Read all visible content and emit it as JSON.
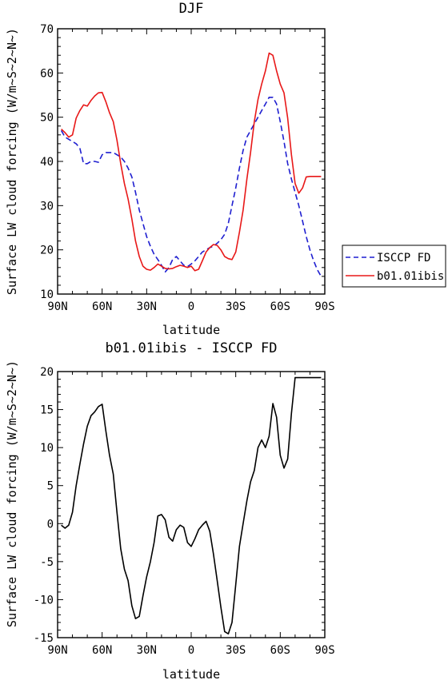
{
  "chart_data": [
    {
      "type": "line",
      "title": "DJF",
      "xlabel": "latitude",
      "ylabel": "Surface LW cloud forcing (W/m~S~2~N~)",
      "xlim": [
        -90,
        90
      ],
      "ylim": [
        10,
        70
      ],
      "x_ticks": [
        -90,
        -60,
        -30,
        0,
        30,
        60,
        90
      ],
      "x_tick_labels": [
        "90N",
        "60N",
        "30N",
        "0",
        "30S",
        "60S",
        "90S"
      ],
      "y_ticks": [
        10,
        20,
        30,
        40,
        50,
        60,
        70
      ],
      "y_tick_labels": [
        "10",
        "20",
        "30",
        "40",
        "50",
        "60",
        "70"
      ],
      "legend_position": "outside-right",
      "series": [
        {
          "name": "ISCCP FD",
          "color": "#1f1fd0",
          "dash": "dashed",
          "x": [
            -87.5,
            -85,
            -82.5,
            -80,
            -77.5,
            -75,
            -72.5,
            -70,
            -67.5,
            -65,
            -62.5,
            -60,
            -57.5,
            -55,
            -52.5,
            -50,
            -47.5,
            -45,
            -42.5,
            -40,
            -37.5,
            -35,
            -32.5,
            -30,
            -27.5,
            -25,
            -22.5,
            -20,
            -17.5,
            -15,
            -12.5,
            -10,
            -7.5,
            -5,
            -2.5,
            0,
            2.5,
            5,
            7.5,
            10,
            12.5,
            15,
            17.5,
            20,
            22.5,
            25,
            27.5,
            30,
            32.5,
            35,
            37.5,
            40,
            42.5,
            45,
            47.5,
            50,
            52.5,
            55,
            57.5,
            60,
            62.5,
            65,
            67.5,
            70,
            72.5,
            75,
            77.5,
            80,
            82.5,
            85,
            87.5
          ],
          "values": [
            47,
            45.5,
            45,
            44.5,
            44,
            43,
            39.5,
            39.5,
            40,
            40,
            39.8,
            41.5,
            42,
            42,
            42,
            41.5,
            41,
            40,
            38.5,
            36.5,
            33,
            29,
            26,
            23,
            20.8,
            19,
            17.8,
            16.5,
            15,
            16,
            17.8,
            18.5,
            17.5,
            16.5,
            16.2,
            16.8,
            17.5,
            18.5,
            19.5,
            20,
            20.5,
            20.8,
            21.5,
            22.3,
            23.5,
            26,
            30,
            34,
            38.5,
            42.5,
            45.5,
            47,
            48.5,
            50,
            51.5,
            53,
            54.5,
            54.5,
            53,
            49,
            44.5,
            39.5,
            36,
            33,
            30,
            26.5,
            23,
            20,
            17.5,
            15.5,
            14
          ]
        },
        {
          "name": "b01.01ibis",
          "color": "#e81818",
          "dash": "solid",
          "x": [
            -87.5,
            -85,
            -82.5,
            -80,
            -77.5,
            -75,
            -72.5,
            -70,
            -67.5,
            -65,
            -62.5,
            -60,
            -57.5,
            -55,
            -52.5,
            -50,
            -47.5,
            -45,
            -42.5,
            -40,
            -37.5,
            -35,
            -32.5,
            -30,
            -27.5,
            -25,
            -22.5,
            -20,
            -17.5,
            -15,
            -12.5,
            -10,
            -7.5,
            -5,
            -2.5,
            0,
            2.5,
            5,
            7.5,
            10,
            12.5,
            15,
            17.5,
            20,
            22.5,
            25,
            27.5,
            30,
            32.5,
            35,
            37.5,
            40,
            42.5,
            45,
            47.5,
            50,
            52.5,
            55,
            57.5,
            60,
            62.5,
            65,
            67.5,
            70,
            72.5,
            75,
            77.5,
            80,
            82.5,
            85,
            87.5
          ],
          "values": [
            47.3,
            46.5,
            45.5,
            46,
            49.8,
            51.5,
            52.8,
            52.5,
            53.8,
            54.8,
            55.5,
            55.6,
            53.5,
            51,
            49,
            44.8,
            39.5,
            35,
            31.5,
            27,
            22,
            18.5,
            16.3,
            15.6,
            15.4,
            16,
            16.8,
            16.3,
            15.8,
            15.7,
            15.8,
            16.2,
            16.5,
            16.3,
            16,
            16.3,
            15.3,
            15.6,
            17.5,
            19.5,
            20.5,
            21.2,
            21,
            20,
            18.5,
            18,
            17.8,
            19.5,
            24,
            29,
            36,
            42,
            49,
            54,
            57.5,
            60.5,
            64.5,
            64,
            60.5,
            57.5,
            55.5,
            49.8,
            41.5,
            35,
            32.8,
            34,
            36.5,
            36.6,
            36.6,
            36.6,
            36.6
          ]
        }
      ]
    },
    {
      "type": "line",
      "title": "b01.01ibis - ISCCP FD",
      "xlabel": "latitude",
      "ylabel": "Surface LW cloud forcing (W/m~S~2~N~)",
      "xlim": [
        -90,
        90
      ],
      "ylim": [
        -15,
        20
      ],
      "x_ticks": [
        -90,
        -60,
        -30,
        0,
        30,
        60,
        90
      ],
      "x_tick_labels": [
        "90N",
        "60N",
        "30N",
        "0",
        "30S",
        "60S",
        "90S"
      ],
      "y_ticks": [
        -15,
        -10,
        -5,
        0,
        5,
        10,
        15,
        20
      ],
      "y_tick_labels": [
        "-15",
        "-10",
        "-5",
        "0",
        "5",
        "10",
        "15",
        "20"
      ],
      "series": [
        {
          "color": "#000000",
          "dash": "solid",
          "x": [
            -87.5,
            -85,
            -82.5,
            -80,
            -77.5,
            -75,
            -72.5,
            -70,
            -67.5,
            -65,
            -62.5,
            -60,
            -57.5,
            -55,
            -52.5,
            -50,
            -47.5,
            -45,
            -42.5,
            -40,
            -37.5,
            -35,
            -32.5,
            -30,
            -27.5,
            -25,
            -22.5,
            -20,
            -17.5,
            -15,
            -12.5,
            -10,
            -7.5,
            -5,
            -2.5,
            0,
            2.5,
            5,
            7.5,
            10,
            12.5,
            15,
            17.5,
            20,
            22.5,
            25,
            27.5,
            30,
            32.5,
            35,
            37.5,
            40,
            42.5,
            45,
            47.5,
            50,
            52.5,
            55,
            57.5,
            60,
            62.5,
            65,
            67.5,
            70,
            72.5,
            75,
            77.5,
            80,
            82.5,
            85,
            87.5
          ],
          "values": [
            -0.2,
            -0.6,
            -0.2,
            1.5,
            5,
            7.8,
            10.5,
            12.8,
            14.2,
            14.7,
            15.4,
            15.7,
            12.2,
            9,
            6.5,
            1.5,
            -3.3,
            -6,
            -7.5,
            -10.8,
            -12.5,
            -12.2,
            -9.5,
            -7,
            -5,
            -2.5,
            1,
            1.2,
            0.5,
            -1.8,
            -2.3,
            -0.8,
            -0.2,
            -0.5,
            -2.5,
            -3,
            -2,
            -0.8,
            -0.2,
            0.3,
            -1,
            -4,
            -7.5,
            -11,
            -14.2,
            -14.5,
            -13,
            -8,
            -3,
            0,
            3,
            5.5,
            7,
            10,
            11,
            10,
            11.5,
            15.8,
            14,
            9,
            7.3,
            8.5,
            14.5,
            19.2,
            19.2,
            19.2,
            19.2,
            19.2,
            19.2,
            19.2,
            19.2
          ]
        }
      ]
    }
  ]
}
